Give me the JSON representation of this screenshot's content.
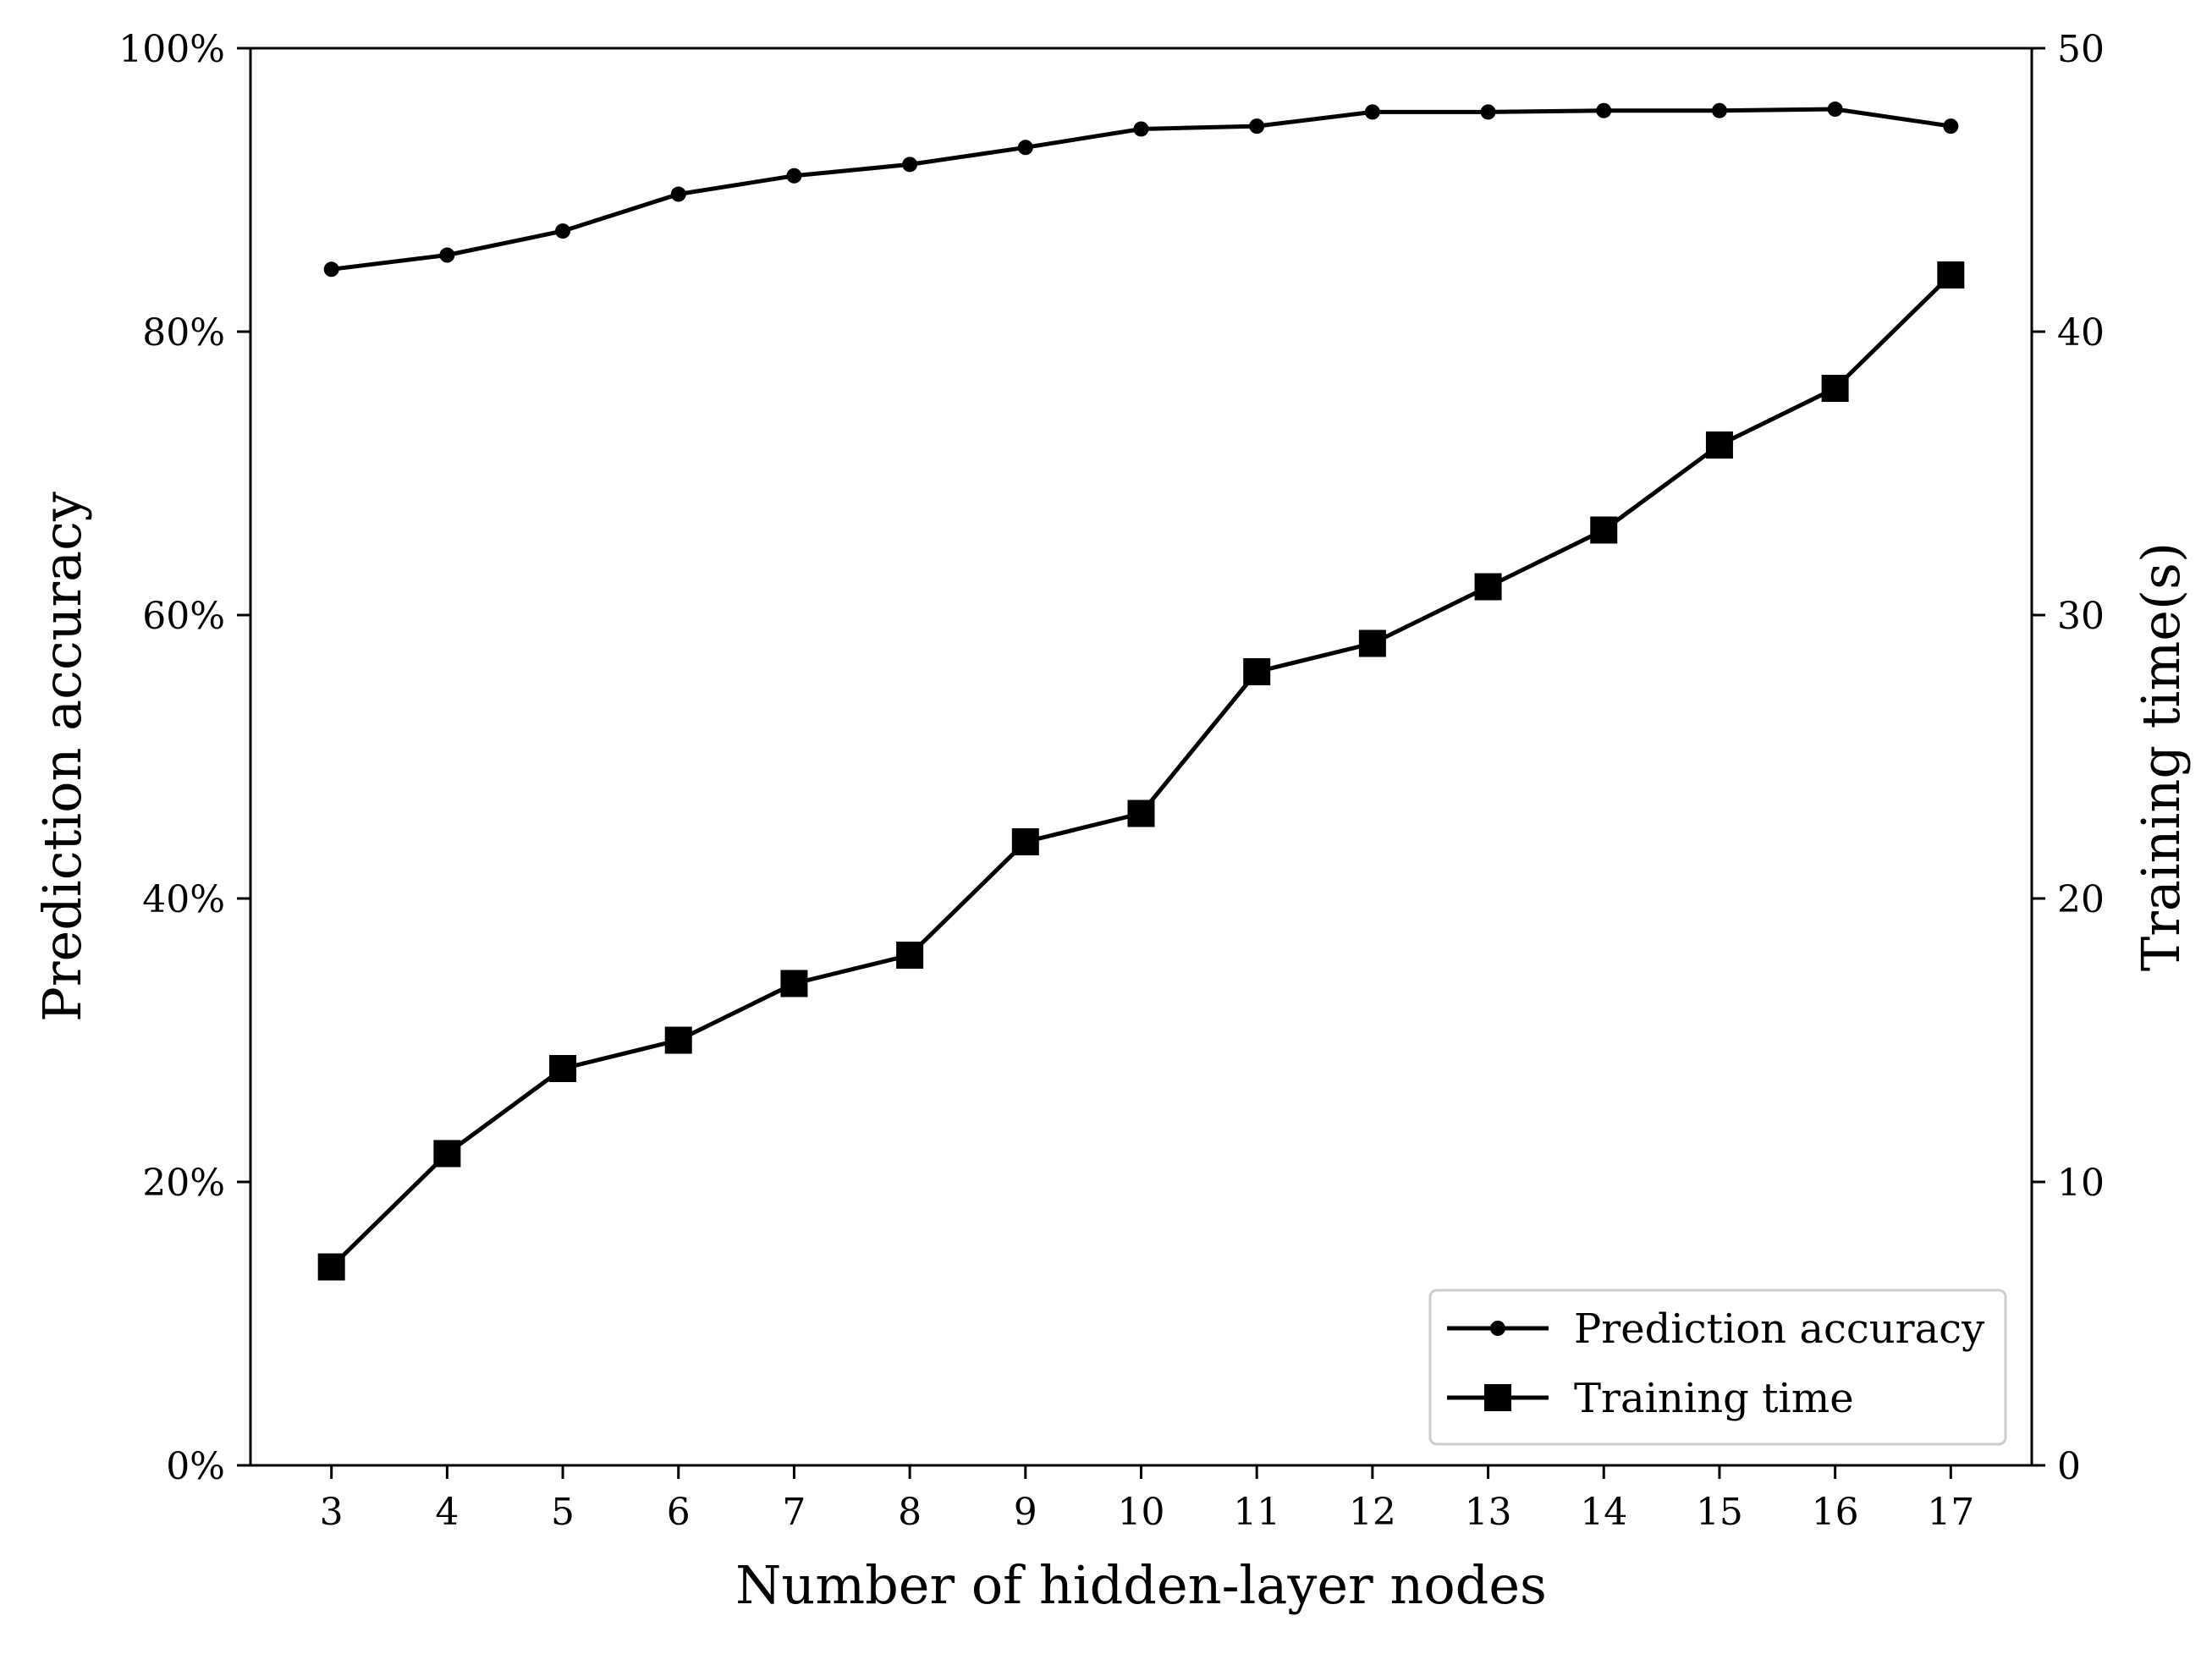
{
  "chart_data": {
    "type": "line",
    "x": [
      3,
      4,
      5,
      6,
      7,
      8,
      9,
      10,
      11,
      12,
      13,
      14,
      15,
      16,
      17
    ],
    "xlabel": "Number of hidden-layer nodes",
    "x_tick_labels": [
      "3",
      "4",
      "5",
      "6",
      "7",
      "8",
      "9",
      "10",
      "11",
      "12",
      "13",
      "14",
      "15",
      "16",
      "17"
    ],
    "y_left": {
      "label": "Prediction accuracy",
      "lim": [
        0,
        100
      ],
      "ticks": [
        0,
        20,
        40,
        60,
        80,
        100
      ],
      "tick_labels": [
        "0%",
        "20%",
        "40%",
        "60%",
        "80%",
        "100%"
      ]
    },
    "y_right": {
      "label": "Training time(s)",
      "lim": [
        0,
        50
      ],
      "ticks": [
        0,
        10,
        20,
        30,
        40,
        50
      ],
      "tick_labels": [
        "0",
        "10",
        "20",
        "30",
        "40",
        "50"
      ]
    },
    "series": [
      {
        "name": "Prediction accuracy",
        "axis": "left",
        "marker": "circle",
        "values": [
          84.4,
          85.4,
          87.1,
          89.7,
          91.0,
          91.8,
          93.0,
          94.3,
          94.5,
          95.5,
          95.5,
          95.6,
          95.6,
          95.7,
          94.5
        ]
      },
      {
        "name": "Training time",
        "axis": "right",
        "marker": "square",
        "values": [
          7,
          11,
          14,
          15,
          17,
          18,
          22,
          23,
          28,
          29,
          31,
          33,
          36,
          38,
          42
        ]
      }
    ],
    "legend_position": "lower-right",
    "grid": false,
    "colors": {
      "line": "#000000",
      "background": "#ffffff"
    }
  }
}
